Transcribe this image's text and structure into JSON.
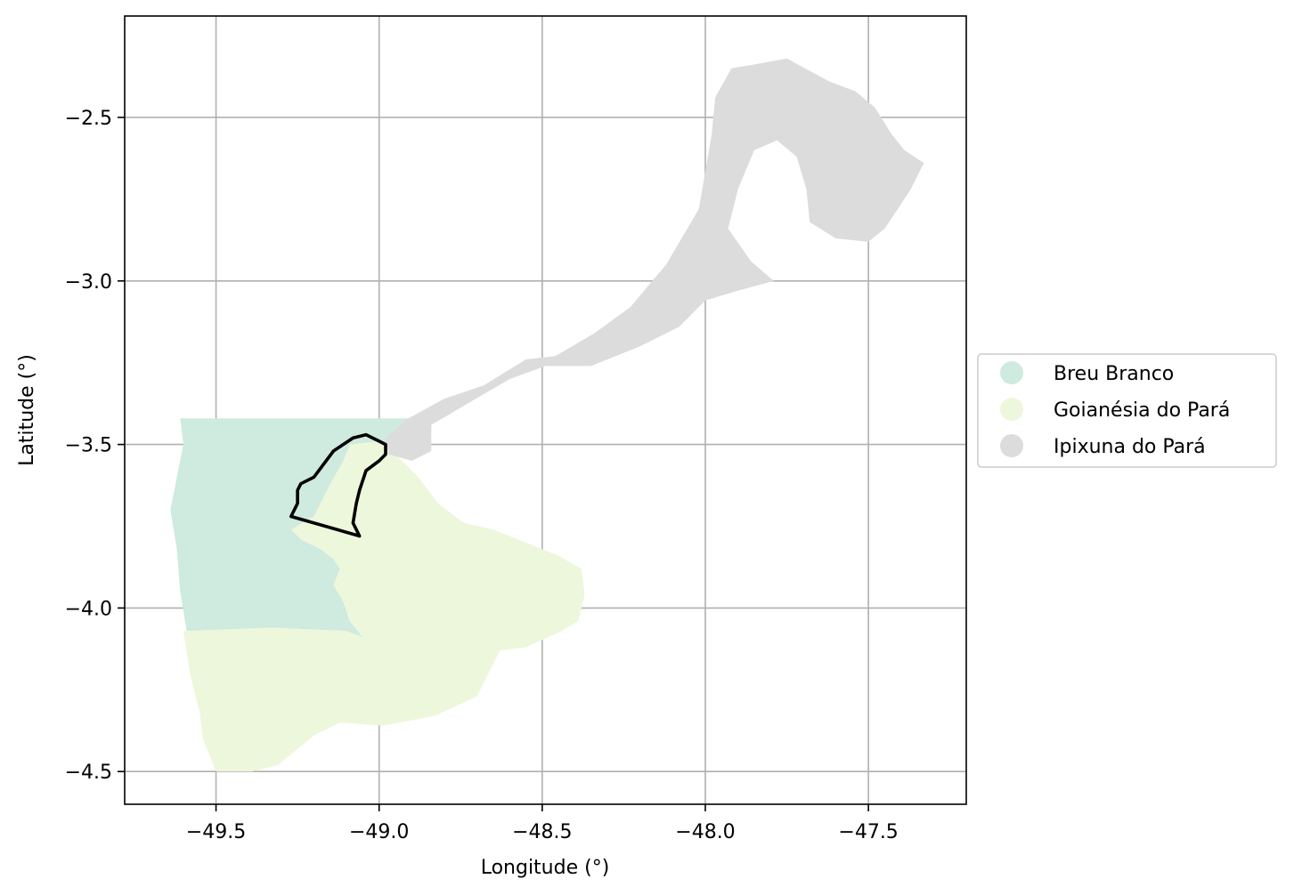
{
  "map": {
    "x_label": "Longitude (°)",
    "y_label": "Latitude (°)",
    "xlim": [
      -49.78,
      -47.2
    ],
    "ylim": [
      -4.6,
      -2.19
    ],
    "x_ticks": [
      -49.5,
      -49.0,
      -48.5,
      -48.0,
      -47.5
    ],
    "y_ticks": [
      -2.5,
      -3.0,
      -3.5,
      -4.0,
      -4.5
    ],
    "x_tick_labels": [
      "−49.5",
      "−49.0",
      "−48.5",
      "−48.0",
      "−47.5"
    ],
    "y_tick_labels": [
      "−2.5",
      "−3.0",
      "−3.5",
      "−4.0",
      "−4.5"
    ],
    "grid": true,
    "legend": {
      "placement": "center-right-outside",
      "entries": [
        {
          "label": "Breu Branco",
          "color": "#cfeadf"
        },
        {
          "label": "Goianésia do Pará",
          "color": "#edf7dc"
        },
        {
          "label": "Ipixuna do Pará",
          "color": "#dcdcdc"
        }
      ]
    },
    "regions": [
      {
        "name": "Breu Branco",
        "color": "#cfeadf",
        "coords": [
          [
            -49.61,
            -3.42
          ],
          [
            -48.88,
            -3.42
          ],
          [
            -48.95,
            -3.47
          ],
          [
            -48.98,
            -3.52
          ],
          [
            -49.02,
            -3.58
          ],
          [
            -49.09,
            -3.66
          ],
          [
            -49.17,
            -3.72
          ],
          [
            -49.27,
            -3.76
          ],
          [
            -49.24,
            -3.79
          ],
          [
            -49.18,
            -3.82
          ],
          [
            -49.14,
            -3.85
          ],
          [
            -49.12,
            -3.88
          ],
          [
            -49.14,
            -3.93
          ],
          [
            -49.11,
            -3.98
          ],
          [
            -49.09,
            -4.04
          ],
          [
            -49.05,
            -4.09
          ],
          [
            -49.1,
            -4.07
          ],
          [
            -49.33,
            -4.06
          ],
          [
            -49.59,
            -4.07
          ],
          [
            -49.61,
            -3.95
          ],
          [
            -49.62,
            -3.82
          ],
          [
            -49.64,
            -3.7
          ],
          [
            -49.62,
            -3.6
          ],
          [
            -49.6,
            -3.5
          ]
        ]
      },
      {
        "name": "Goianésia do Pará",
        "color": "#edf7dc",
        "coords": [
          [
            -49.09,
            -3.5
          ],
          [
            -49.0,
            -3.49
          ],
          [
            -48.95,
            -3.53
          ],
          [
            -48.88,
            -3.6
          ],
          [
            -48.82,
            -3.68
          ],
          [
            -48.74,
            -3.74
          ],
          [
            -48.65,
            -3.76
          ],
          [
            -48.55,
            -3.8
          ],
          [
            -48.45,
            -3.84
          ],
          [
            -48.38,
            -3.88
          ],
          [
            -48.37,
            -3.96
          ],
          [
            -48.39,
            -4.04
          ],
          [
            -48.44,
            -4.07
          ],
          [
            -48.55,
            -4.12
          ],
          [
            -48.63,
            -4.13
          ],
          [
            -48.7,
            -4.27
          ],
          [
            -48.83,
            -4.33
          ],
          [
            -48.99,
            -4.36
          ],
          [
            -49.12,
            -4.35
          ],
          [
            -49.2,
            -4.39
          ],
          [
            -49.31,
            -4.48
          ],
          [
            -49.39,
            -4.5
          ],
          [
            -49.5,
            -4.5
          ],
          [
            -49.54,
            -4.4
          ],
          [
            -49.55,
            -4.32
          ],
          [
            -49.58,
            -4.2
          ],
          [
            -49.6,
            -4.07
          ],
          [
            -49.33,
            -4.06
          ],
          [
            -49.1,
            -4.07
          ],
          [
            -49.05,
            -4.09
          ],
          [
            -49.09,
            -4.04
          ],
          [
            -49.11,
            -3.98
          ],
          [
            -49.14,
            -3.93
          ],
          [
            -49.12,
            -3.88
          ],
          [
            -49.14,
            -3.85
          ],
          [
            -49.18,
            -3.82
          ],
          [
            -49.24,
            -3.79
          ],
          [
            -49.27,
            -3.76
          ],
          [
            -49.2,
            -3.72
          ],
          [
            -49.15,
            -3.62
          ],
          [
            -49.11,
            -3.55
          ]
        ]
      },
      {
        "name": "Ipixuna do Pará",
        "color": "#dcdcdc",
        "coords": [
          [
            -48.91,
            -3.42
          ],
          [
            -48.8,
            -3.36
          ],
          [
            -48.68,
            -3.32
          ],
          [
            -48.55,
            -3.24
          ],
          [
            -48.46,
            -3.23
          ],
          [
            -48.34,
            -3.16
          ],
          [
            -48.23,
            -3.08
          ],
          [
            -48.12,
            -2.95
          ],
          [
            -48.02,
            -2.78
          ],
          [
            -47.98,
            -2.55
          ],
          [
            -47.97,
            -2.44
          ],
          [
            -47.92,
            -2.35
          ],
          [
            -47.86,
            -2.34
          ],
          [
            -47.75,
            -2.32
          ],
          [
            -47.62,
            -2.39
          ],
          [
            -47.54,
            -2.42
          ],
          [
            -47.48,
            -2.47
          ],
          [
            -47.43,
            -2.55
          ],
          [
            -47.39,
            -2.6
          ],
          [
            -47.33,
            -2.64
          ],
          [
            -47.37,
            -2.72
          ],
          [
            -47.45,
            -2.84
          ],
          [
            -47.5,
            -2.88
          ],
          [
            -47.6,
            -2.87
          ],
          [
            -47.68,
            -2.82
          ],
          [
            -47.69,
            -2.72
          ],
          [
            -47.72,
            -2.62
          ],
          [
            -47.78,
            -2.57
          ],
          [
            -47.85,
            -2.6
          ],
          [
            -47.9,
            -2.72
          ],
          [
            -47.93,
            -2.84
          ],
          [
            -47.86,
            -2.94
          ],
          [
            -47.79,
            -3.0
          ],
          [
            -47.9,
            -3.03
          ],
          [
            -48.0,
            -3.06
          ],
          [
            -48.08,
            -3.14
          ],
          [
            -48.2,
            -3.2
          ],
          [
            -48.35,
            -3.26
          ],
          [
            -48.49,
            -3.26
          ],
          [
            -48.6,
            -3.3
          ],
          [
            -48.72,
            -3.37
          ],
          [
            -48.84,
            -3.44
          ],
          [
            -48.84,
            -3.52
          ],
          [
            -48.9,
            -3.55
          ],
          [
            -48.97,
            -3.53
          ],
          [
            -48.98,
            -3.48
          ]
        ]
      }
    ],
    "outline": {
      "color": "#000000",
      "coords": [
        [
          -49.0,
          -3.49
        ],
        [
          -49.04,
          -3.47
        ],
        [
          -49.08,
          -3.48
        ],
        [
          -49.14,
          -3.52
        ],
        [
          -49.2,
          -3.6
        ],
        [
          -49.24,
          -3.62
        ],
        [
          -49.25,
          -3.64
        ],
        [
          -49.25,
          -3.68
        ],
        [
          -49.27,
          -3.72
        ],
        [
          -49.06,
          -3.78
        ],
        [
          -49.08,
          -3.74
        ],
        [
          -49.07,
          -3.68
        ],
        [
          -49.06,
          -3.64
        ],
        [
          -49.04,
          -3.58
        ],
        [
          -49.0,
          -3.55
        ],
        [
          -48.98,
          -3.53
        ],
        [
          -48.98,
          -3.5
        ]
      ]
    }
  }
}
